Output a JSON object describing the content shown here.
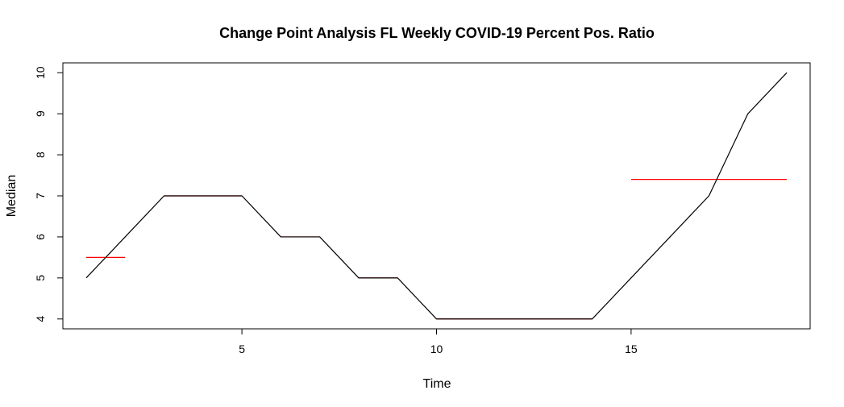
{
  "chart_data": {
    "type": "line",
    "title": "Change Point Analysis FL Weekly COVID-19 Percent Pos. Ratio",
    "xlabel": "Time",
    "ylabel": "Median",
    "xlim": [
      0.4,
      19.6
    ],
    "ylim": [
      3.76,
      10.24
    ],
    "x_ticks": [
      5,
      10,
      15
    ],
    "y_ticks": [
      4,
      5,
      6,
      7,
      8,
      9,
      10
    ],
    "grid": false,
    "legend": "none",
    "series": [
      {
        "color": "#000000",
        "x": [
          1,
          2,
          3,
          4,
          5,
          6,
          7,
          8,
          9,
          10,
          11,
          12,
          13,
          14,
          15,
          16,
          17,
          18,
          19
        ],
        "y": [
          5,
          6,
          7,
          7,
          7,
          6,
          6,
          5,
          5,
          4,
          4,
          4,
          4,
          4,
          5,
          6,
          7,
          9,
          10
        ]
      }
    ],
    "segments": [
      {
        "color": "#ff0000",
        "x0": 1,
        "x1": 2,
        "y": 5.5
      },
      {
        "color": "#ff0000",
        "x0": 3,
        "x1": 5,
        "y": 7
      },
      {
        "color": "#ff0000",
        "x0": 6,
        "x1": 7,
        "y": 6
      },
      {
        "color": "#ff0000",
        "x0": 8,
        "x1": 9,
        "y": 5
      },
      {
        "color": "#ff0000",
        "x0": 10,
        "x1": 14,
        "y": 4
      },
      {
        "color": "#ff0000",
        "x0": 15,
        "x1": 19,
        "y": 7.4
      }
    ]
  }
}
